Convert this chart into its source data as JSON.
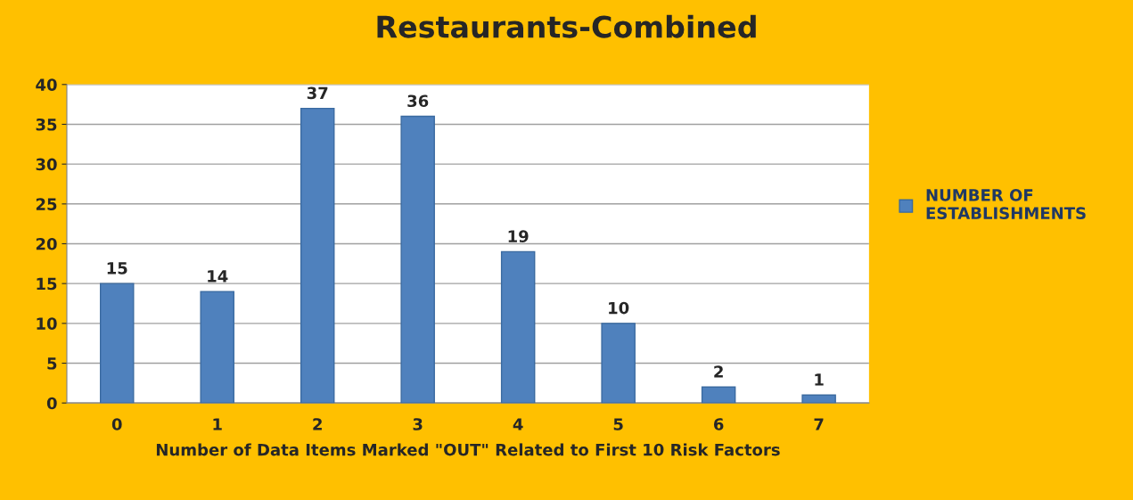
{
  "chart_data": {
    "type": "bar",
    "title": "Restaurants-Combined",
    "xlabel": "Number of Data Items Marked \"OUT\" Related to First 10 Risk Factors",
    "categories": [
      "0",
      "1",
      "2",
      "3",
      "4",
      "5",
      "6",
      "7"
    ],
    "series": [
      {
        "name": "NUMBER OF ESTABLISHMENTS",
        "color": "#4f81bd",
        "values": [
          15,
          14,
          37,
          36,
          19,
          10,
          2,
          1
        ]
      }
    ],
    "ylim": [
      0,
      40
    ],
    "yticks": [
      0,
      5,
      10,
      15,
      20,
      25,
      30,
      35,
      40
    ],
    "grid": "y",
    "legend": "right",
    "data_labels": true
  }
}
